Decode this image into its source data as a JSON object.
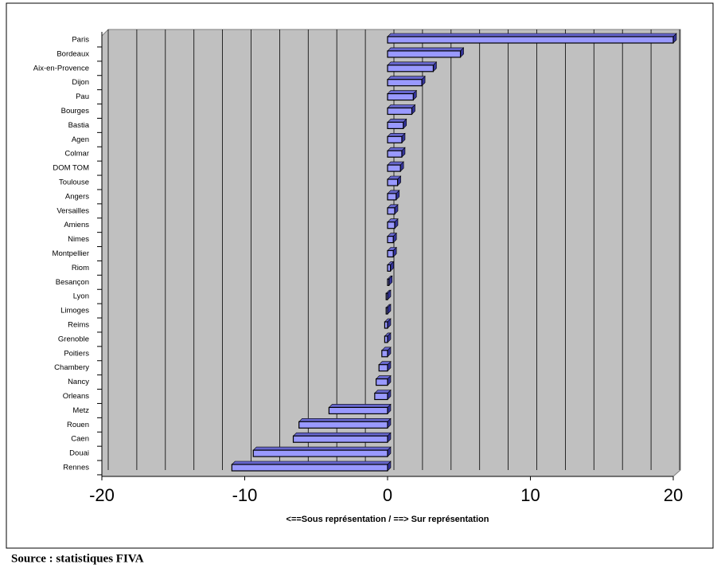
{
  "chart_data": {
    "type": "bar",
    "orientation": "horizontal",
    "categories": [
      "Paris",
      "Bordeaux",
      "Aix-en-Provence",
      "Dijon",
      "Pau",
      "Bourges",
      "Bastia",
      "Agen",
      "Colmar",
      "DOM TOM",
      "Toulouse",
      "Angers",
      "Versailles",
      "Amiens",
      "Nimes",
      "Montpellier",
      "Riom",
      "Besançon",
      "Lyon",
      "Limoges",
      "Reims",
      "Grenoble",
      "Poitiers",
      "Chambery",
      "Nancy",
      "Orleans",
      "Metz",
      "Rouen",
      "Caen",
      "Douai",
      "Rennes"
    ],
    "values": [
      20,
      5.1,
      3.2,
      2.4,
      1.8,
      1.7,
      1.1,
      1.0,
      1.0,
      0.9,
      0.7,
      0.6,
      0.5,
      0.5,
      0.4,
      0.4,
      0.2,
      0.1,
      -0.1,
      -0.1,
      -0.2,
      -0.2,
      -0.4,
      -0.6,
      -0.8,
      -0.9,
      -4.1,
      -6.2,
      -6.6,
      -9.4,
      -10.9
    ],
    "color": "#9999ff",
    "xlabel": "<==Sous représentation / ==> Sur représentation",
    "xlim": [
      -20,
      20
    ],
    "xticks": [
      -20,
      -10,
      0,
      10,
      20
    ],
    "grid": true,
    "grid_step": 2
  },
  "source": "Source : statistiques FIVA"
}
